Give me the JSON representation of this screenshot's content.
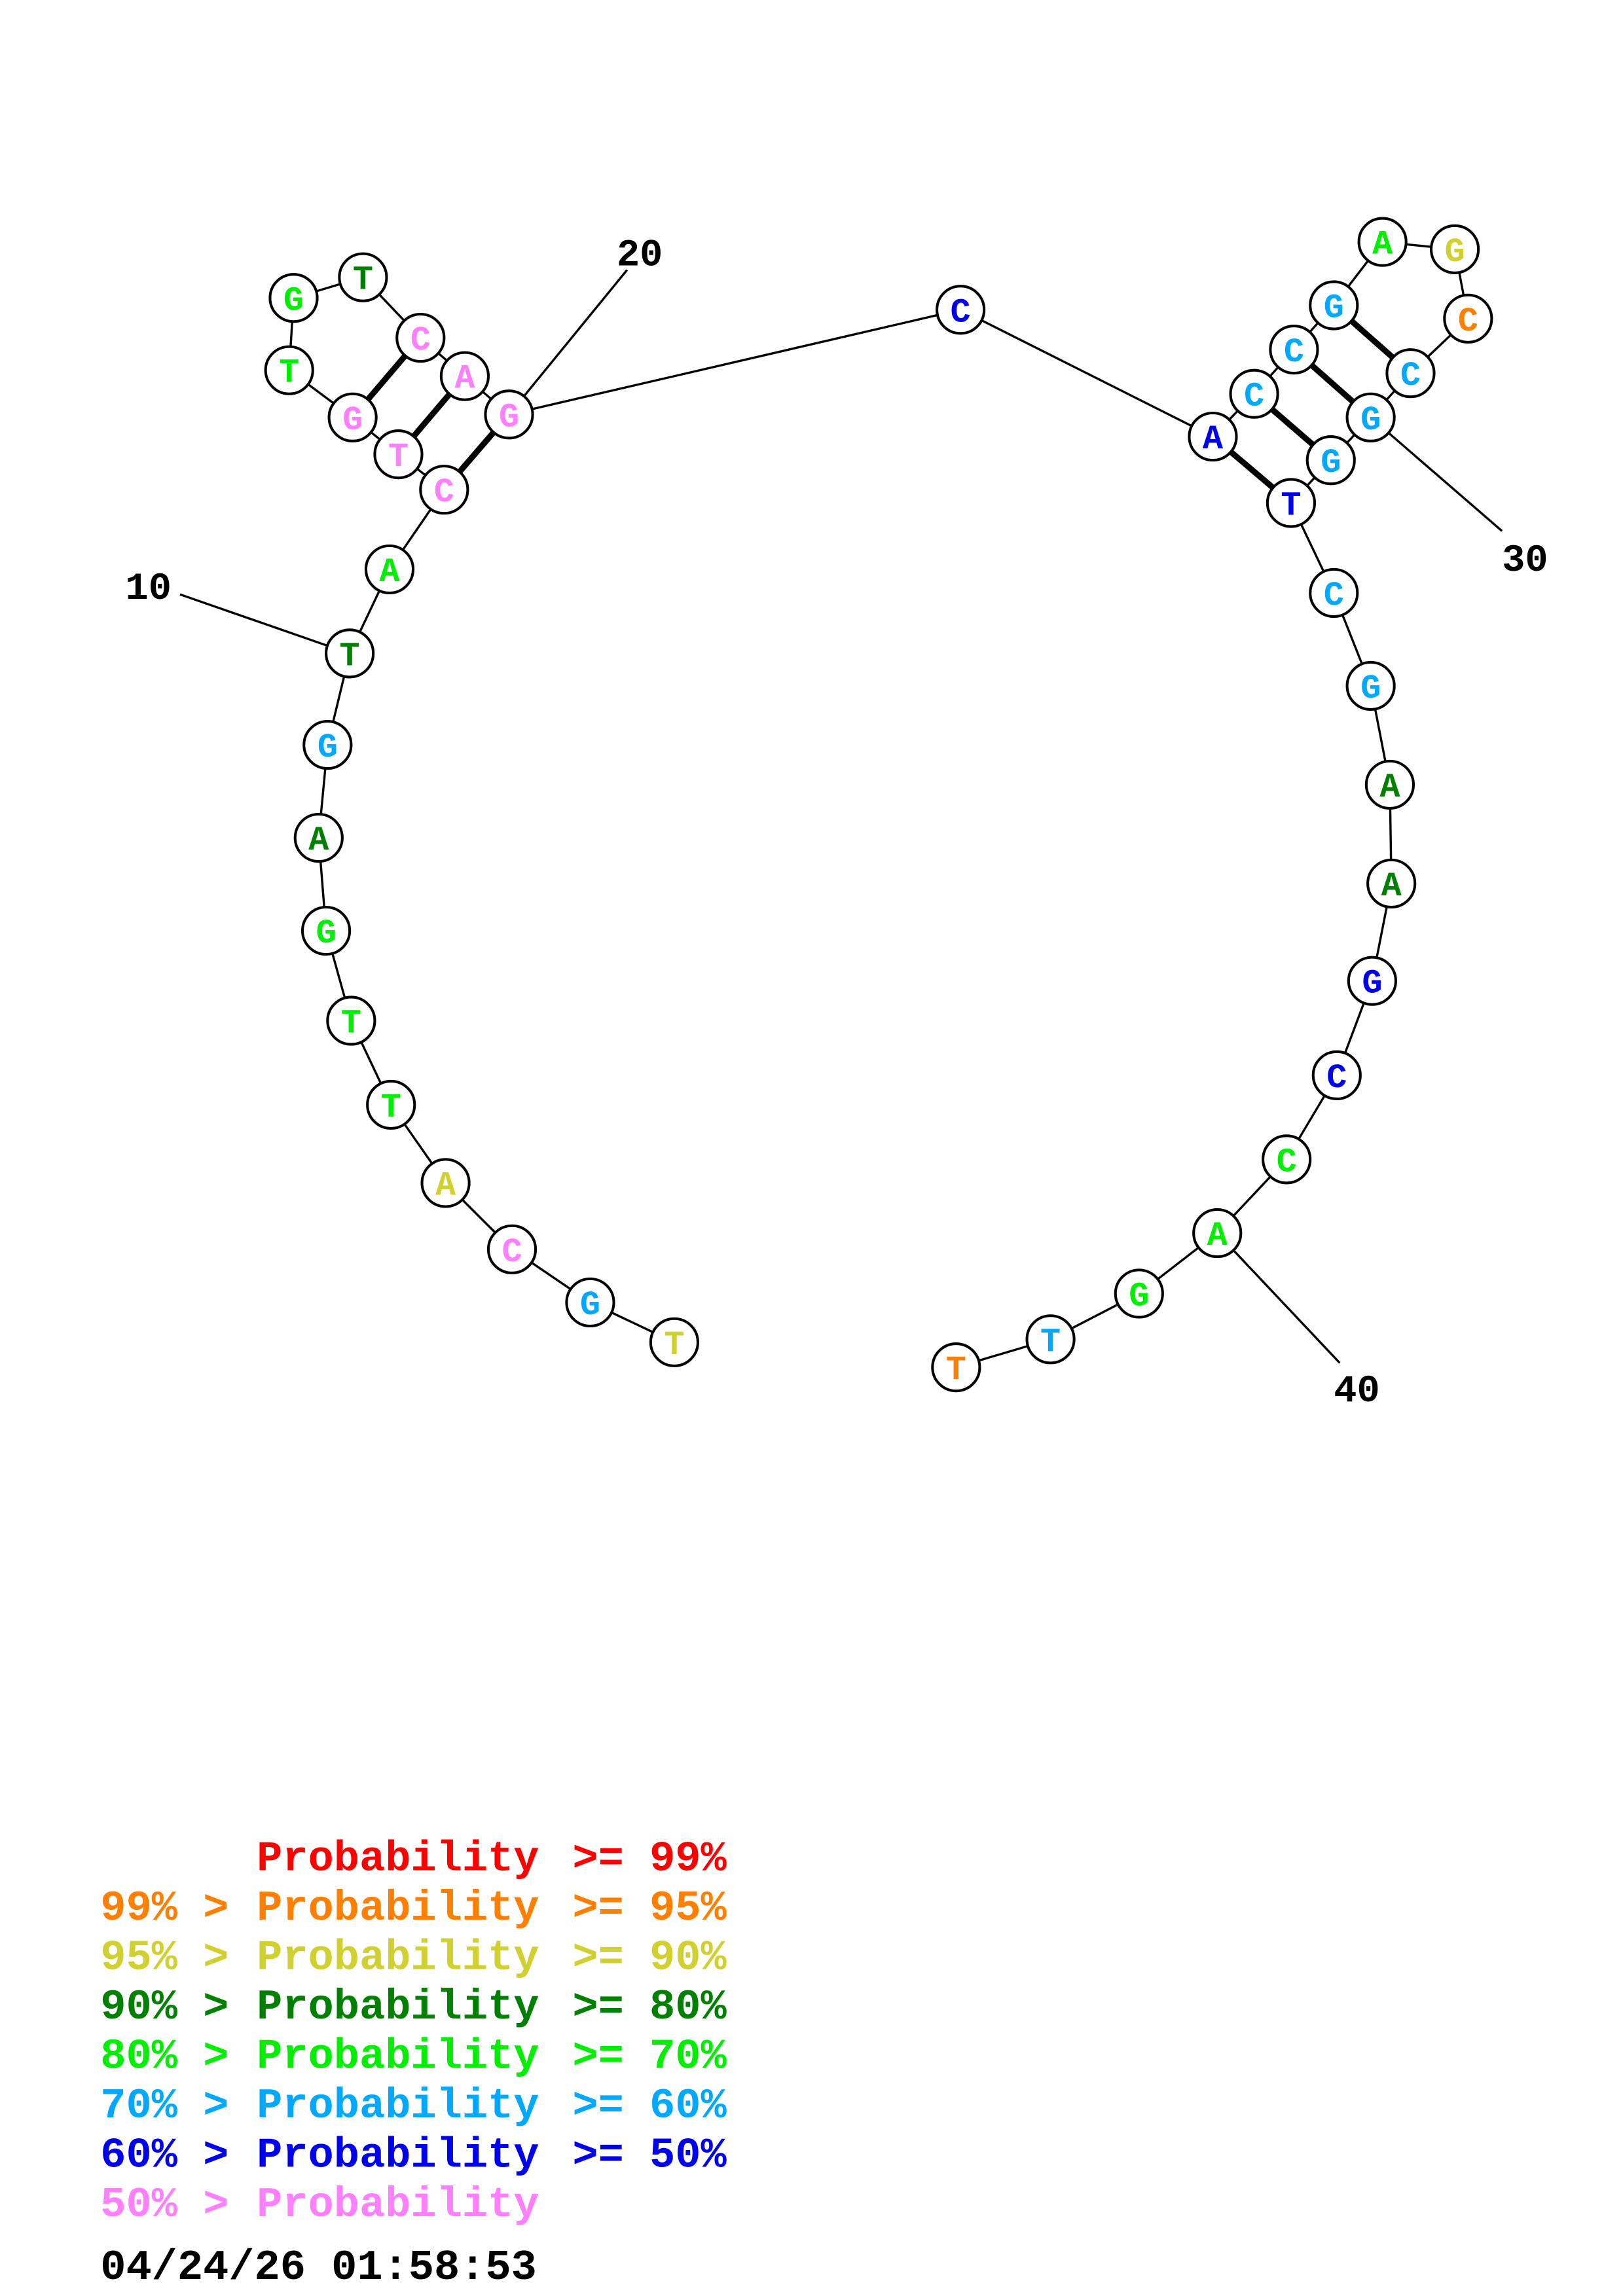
{
  "structure": {
    "sequence": [
      "T",
      "G",
      "C",
      "A",
      "T",
      "T",
      "G",
      "A",
      "G",
      "T",
      "A",
      "C",
      "T",
      "G",
      "T",
      "G",
      "T",
      "C",
      "A",
      "G",
      "C",
      "A",
      "C",
      "C",
      "G",
      "A",
      "G",
      "C",
      "C",
      "G",
      "G",
      "T",
      "C",
      "G",
      "A",
      "A",
      "G",
      "C",
      "C",
      "A",
      "G",
      "T",
      "T"
    ],
    "probability_class": [
      "90",
      "60",
      "lt50",
      "90",
      "70",
      "70",
      "70",
      "80",
      "60",
      "80",
      "70",
      "lt50",
      "lt50",
      "lt50",
      "70",
      "70",
      "80",
      "lt50",
      "lt50",
      "lt50",
      "50",
      "50",
      "60",
      "60",
      "60",
      "70",
      "90",
      "95",
      "60",
      "60",
      "60",
      "50",
      "60",
      "60",
      "80",
      "80",
      "50",
      "50",
      "70",
      "70",
      "70",
      "60",
      "95"
    ],
    "pairs": [
      [
        12,
        20
      ],
      [
        13,
        19
      ],
      [
        14,
        18
      ],
      [
        22,
        32
      ],
      [
        23,
        31
      ],
      [
        24,
        30
      ],
      [
        25,
        29
      ]
    ],
    "position_labels": [
      "10",
      "20",
      "30",
      "40"
    ]
  },
  "colors": {
    "99": "#ff0000",
    "95": "#ff8000",
    "90": "#d0d030",
    "80": "#008000",
    "70": "#00ee00",
    "60": "#00a8ff",
    "50": "#0000f0",
    "lt50": "#ff80ff"
  },
  "legend": [
    {
      "prefix": "",
      "label": "Probability",
      "suffix": ">= 99%",
      "color": "#ff0000"
    },
    {
      "prefix": "99% >",
      "label": "Probability",
      "suffix": ">= 95%",
      "color": "#ff8000"
    },
    {
      "prefix": "95% >",
      "label": "Probability",
      "suffix": ">= 90%",
      "color": "#d0d030"
    },
    {
      "prefix": "90% >",
      "label": "Probability",
      "suffix": ">= 80%",
      "color": "#008000"
    },
    {
      "prefix": "80% >",
      "label": "Probability",
      "suffix": ">= 70%",
      "color": "#00ee00"
    },
    {
      "prefix": "70% >",
      "label": "Probability",
      "suffix": ">= 60%",
      "color": "#00a8ff"
    },
    {
      "prefix": "60% >",
      "label": "Probability",
      "suffix": ">= 50%",
      "color": "#0000f0"
    },
    {
      "prefix": "50% >",
      "label": "Probability",
      "suffix": "",
      "color": "#ff80ff"
    }
  ],
  "timestamp": "04/24/26 01:58:53"
}
